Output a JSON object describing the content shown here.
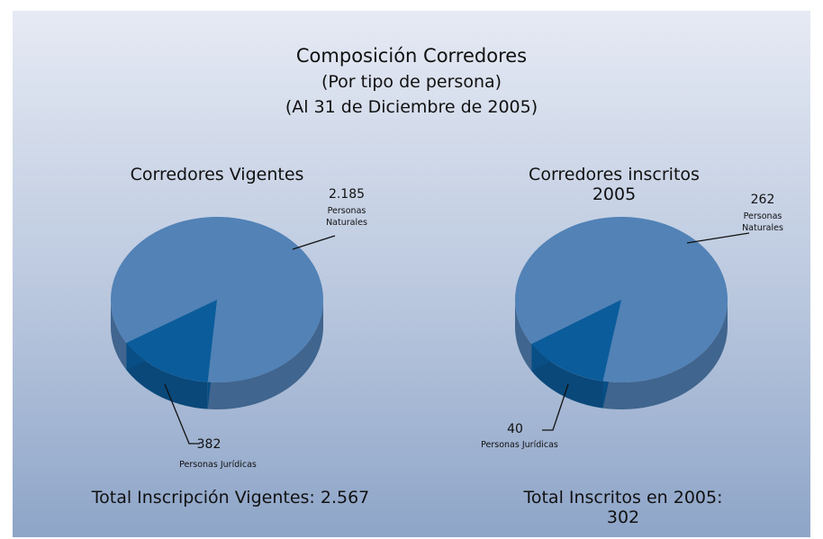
{
  "header": {
    "title": "Composición Corredores",
    "subtitle": "(Por tipo de persona)",
    "date": "(Al 31 de Diciembre de 2005)"
  },
  "chart_data": [
    {
      "type": "pie",
      "title": "Corredores Vigentes",
      "categories": [
        "Personas Naturales",
        "Personas Jurídicas"
      ],
      "values": [
        2185,
        382
      ],
      "value_labels": [
        "2.185",
        "382"
      ],
      "colors": [
        "#5282b6",
        "#0b5c9b"
      ],
      "footer": "Total Inscripción Vigentes: 2.567"
    },
    {
      "type": "pie",
      "title": "Corredores inscritos 2005",
      "categories": [
        "Personas Naturales",
        "Personas Jurídicas"
      ],
      "values": [
        262,
        40
      ],
      "value_labels": [
        "262",
        "40"
      ],
      "colors": [
        "#5282b6",
        "#0b5c9b"
      ],
      "footer": "Total Inscritos en 2005: 302"
    }
  ]
}
